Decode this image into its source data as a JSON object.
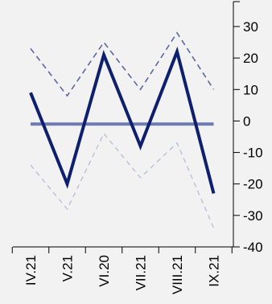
{
  "chart_data": {
    "type": "line",
    "title": "",
    "xlabel": "",
    "ylabel": "",
    "categories": [
      "IV.21",
      "V.21",
      "VI.20",
      "VII.21",
      "VIII.21",
      "IX.21"
    ],
    "ylim": [
      -40,
      30
    ],
    "yticks": [
      30,
      20,
      10,
      0,
      -10,
      -20,
      -30,
      -40
    ],
    "y_axis_position": "right",
    "grid": false,
    "legend": "none",
    "series": [
      {
        "values": [
          9,
          -20,
          21,
          -8,
          22,
          -23
        ],
        "style": "solid-thick",
        "color": "#0e1f6e"
      },
      {
        "values": [
          -1,
          -1,
          -1,
          -1,
          -1,
          -1
        ],
        "style": "solid-thick",
        "color": "#6e7ab0"
      },
      {
        "values": [
          23,
          8,
          25,
          10,
          28,
          10
        ],
        "style": "dashed",
        "color": "#5a67a0"
      },
      {
        "values": [
          -14,
          -28,
          -4,
          -18,
          -7,
          -34
        ],
        "style": "dashed-thin",
        "color": "#b6bcd8"
      }
    ]
  }
}
